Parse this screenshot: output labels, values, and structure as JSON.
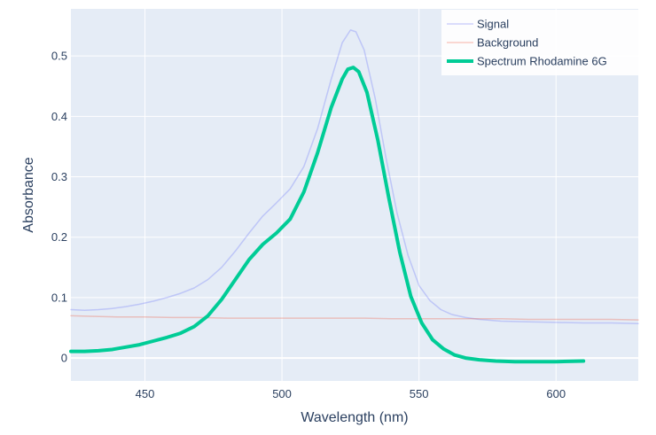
{
  "chart_data": {
    "type": "line",
    "xlabel": "Wavelength (nm)",
    "ylabel": "Absorbance",
    "xlim": [
      423,
      630
    ],
    "ylim": [
      -0.038,
      0.578
    ],
    "xticks": [
      450,
      500,
      550,
      600
    ],
    "yticks": [
      0,
      0.1,
      0.2,
      0.3,
      0.4,
      0.5
    ],
    "ytick_labels": [
      "0",
      "0.1",
      "0.2",
      "0.3",
      "0.4",
      "0.5"
    ],
    "grid": true,
    "legend": "top-right",
    "background": "#e5ecf6",
    "series": [
      {
        "name": "Signal",
        "color": "#636efa",
        "opacity": 0.3,
        "width": 1.5,
        "points": [
          [
            423,
            0.08
          ],
          [
            428,
            0.079
          ],
          [
            433,
            0.08
          ],
          [
            438,
            0.082
          ],
          [
            443,
            0.085
          ],
          [
            448,
            0.089
          ],
          [
            453,
            0.094
          ],
          [
            458,
            0.1
          ],
          [
            463,
            0.107
          ],
          [
            468,
            0.116
          ],
          [
            473,
            0.13
          ],
          [
            478,
            0.15
          ],
          [
            483,
            0.177
          ],
          [
            488,
            0.207
          ],
          [
            493,
            0.235
          ],
          [
            498,
            0.257
          ],
          [
            503,
            0.28
          ],
          [
            508,
            0.317
          ],
          [
            513,
            0.38
          ],
          [
            518,
            0.462
          ],
          [
            522,
            0.522
          ],
          [
            525,
            0.543
          ],
          [
            527,
            0.54
          ],
          [
            530,
            0.51
          ],
          [
            534,
            0.43
          ],
          [
            538,
            0.33
          ],
          [
            542,
            0.24
          ],
          [
            546,
            0.17
          ],
          [
            550,
            0.12
          ],
          [
            554,
            0.095
          ],
          [
            558,
            0.08
          ],
          [
            562,
            0.072
          ],
          [
            567,
            0.067
          ],
          [
            572,
            0.064
          ],
          [
            580,
            0.061
          ],
          [
            590,
            0.06
          ],
          [
            600,
            0.059
          ],
          [
            610,
            0.058
          ],
          [
            620,
            0.058
          ],
          [
            630,
            0.057
          ]
        ]
      },
      {
        "name": "Background",
        "color": "#ef553b",
        "opacity": 0.3,
        "width": 1.5,
        "points": [
          [
            423,
            0.07
          ],
          [
            430,
            0.069
          ],
          [
            440,
            0.068
          ],
          [
            450,
            0.068
          ],
          [
            460,
            0.067
          ],
          [
            470,
            0.067
          ],
          [
            480,
            0.066
          ],
          [
            490,
            0.066
          ],
          [
            500,
            0.066
          ],
          [
            510,
            0.066
          ],
          [
            520,
            0.066
          ],
          [
            530,
            0.066
          ],
          [
            540,
            0.065
          ],
          [
            550,
            0.065
          ],
          [
            560,
            0.065
          ],
          [
            570,
            0.065
          ],
          [
            580,
            0.065
          ],
          [
            590,
            0.064
          ],
          [
            600,
            0.064
          ],
          [
            610,
            0.064
          ],
          [
            620,
            0.064
          ],
          [
            630,
            0.063
          ]
        ]
      },
      {
        "name": "Spectrum Rhodamine 6G",
        "color": "#00cc96",
        "opacity": 1,
        "width": 4,
        "points": [
          [
            423,
            0.011
          ],
          [
            428,
            0.011
          ],
          [
            433,
            0.012
          ],
          [
            438,
            0.014
          ],
          [
            443,
            0.018
          ],
          [
            448,
            0.022
          ],
          [
            453,
            0.028
          ],
          [
            458,
            0.034
          ],
          [
            463,
            0.041
          ],
          [
            468,
            0.052
          ],
          [
            473,
            0.07
          ],
          [
            478,
            0.097
          ],
          [
            483,
            0.13
          ],
          [
            488,
            0.163
          ],
          [
            493,
            0.188
          ],
          [
            498,
            0.207
          ],
          [
            503,
            0.23
          ],
          [
            508,
            0.275
          ],
          [
            513,
            0.34
          ],
          [
            518,
            0.415
          ],
          [
            522,
            0.462
          ],
          [
            524,
            0.478
          ],
          [
            526,
            0.481
          ],
          [
            528,
            0.474
          ],
          [
            531,
            0.44
          ],
          [
            535,
            0.36
          ],
          [
            539,
            0.265
          ],
          [
            543,
            0.175
          ],
          [
            547,
            0.102
          ],
          [
            551,
            0.058
          ],
          [
            555,
            0.03
          ],
          [
            559,
            0.015
          ],
          [
            563,
            0.005
          ],
          [
            567,
            0.0
          ],
          [
            572,
            -0.003
          ],
          [
            578,
            -0.005
          ],
          [
            585,
            -0.006
          ],
          [
            592,
            -0.006
          ],
          [
            600,
            -0.006
          ],
          [
            610,
            -0.005
          ]
        ]
      }
    ]
  }
}
